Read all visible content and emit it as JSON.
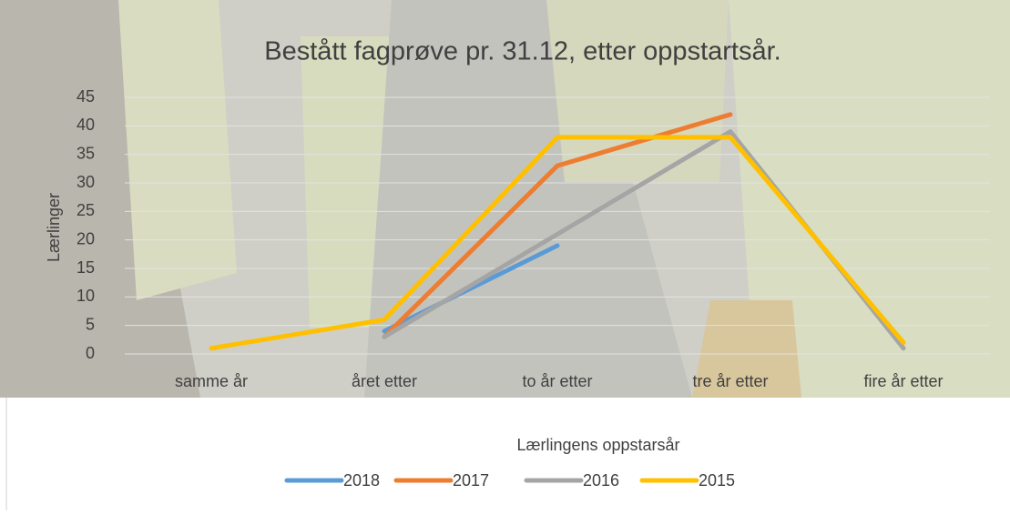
{
  "chart_data": {
    "type": "line",
    "title": "Bestått fagprøve pr. 31.12, etter oppstartsår.",
    "y_label": "Lærlinger",
    "x_label": "Lærlingens oppstarsår",
    "categories": [
      "samme år",
      "året etter",
      "to år etter",
      "tre år etter",
      "fire år etter"
    ],
    "series": [
      {
        "name": "2018",
        "color": "#5b9bd5",
        "values": [
          null,
          4,
          19,
          null,
          null
        ]
      },
      {
        "name": "2017",
        "color": "#ed7d31",
        "values": [
          null,
          3,
          33,
          42,
          null
        ]
      },
      {
        "name": "2016",
        "color": "#a5a5a5",
        "values": [
          null,
          3,
          21,
          39,
          1
        ]
      },
      {
        "name": "2015",
        "color": "#ffc000",
        "values": [
          1,
          6,
          38,
          38,
          2
        ]
      }
    ],
    "ylim": [
      0,
      45
    ],
    "yticks": [
      0,
      5,
      10,
      15,
      20,
      25,
      30,
      35,
      40,
      45
    ],
    "grid": true
  }
}
